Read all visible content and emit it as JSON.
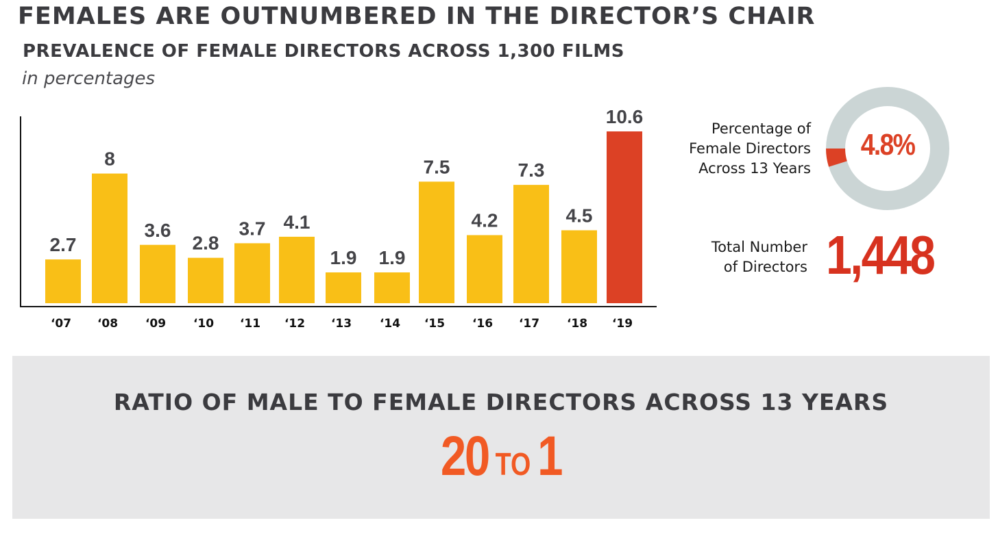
{
  "header": {
    "headline": "FEMALES ARE OUTNUMBERED IN THE DIRECTOR’S CHAIR",
    "subtitle": "PREVALENCE OF FEMALE DIRECTORS ACROSS 1,300 FILMS",
    "units": "in percentages"
  },
  "chart_data": {
    "type": "bar",
    "title": "PREVALENCE OF FEMALE DIRECTORS ACROSS 1,300 FILMS",
    "ylabel": "in percentages",
    "categories": [
      "‘07",
      "‘08",
      "‘09",
      "‘10",
      "‘11",
      "‘12",
      "‘13",
      "‘14",
      "‘15",
      "‘16",
      "‘17",
      "‘18",
      "‘19"
    ],
    "values": [
      2.7,
      8,
      3.6,
      2.8,
      3.7,
      4.1,
      1.9,
      1.9,
      7.5,
      4.2,
      7.3,
      4.5,
      10.6
    ],
    "value_labels": [
      "2.7",
      "8",
      "3.6",
      "2.8",
      "3.7",
      "4.1",
      "1.9",
      "1.9",
      "7.5",
      "4.2",
      "7.3",
      "4.5",
      "10.6"
    ],
    "ylim": [
      0,
      10.6
    ],
    "grid": false,
    "colors": {
      "default": "#f9bf17",
      "highlight": "#dc4125"
    },
    "highlight_index": 12
  },
  "stats": {
    "percentage_label": "Percentage of\nFemale Directors\nAcross 13 Years",
    "percentage_value": "4.8%",
    "percentage_fraction": 0.048,
    "total_label": "Total Number\nof Directors",
    "total_value": "1,448",
    "colors": {
      "ring": "#cbd5d5",
      "segment": "#dc4125"
    }
  },
  "ratio": {
    "title": "RATIO OF MALE TO FEMALE DIRECTORS ACROSS 13 YEARS",
    "left": "20",
    "connector": "TO",
    "right": "1"
  }
}
